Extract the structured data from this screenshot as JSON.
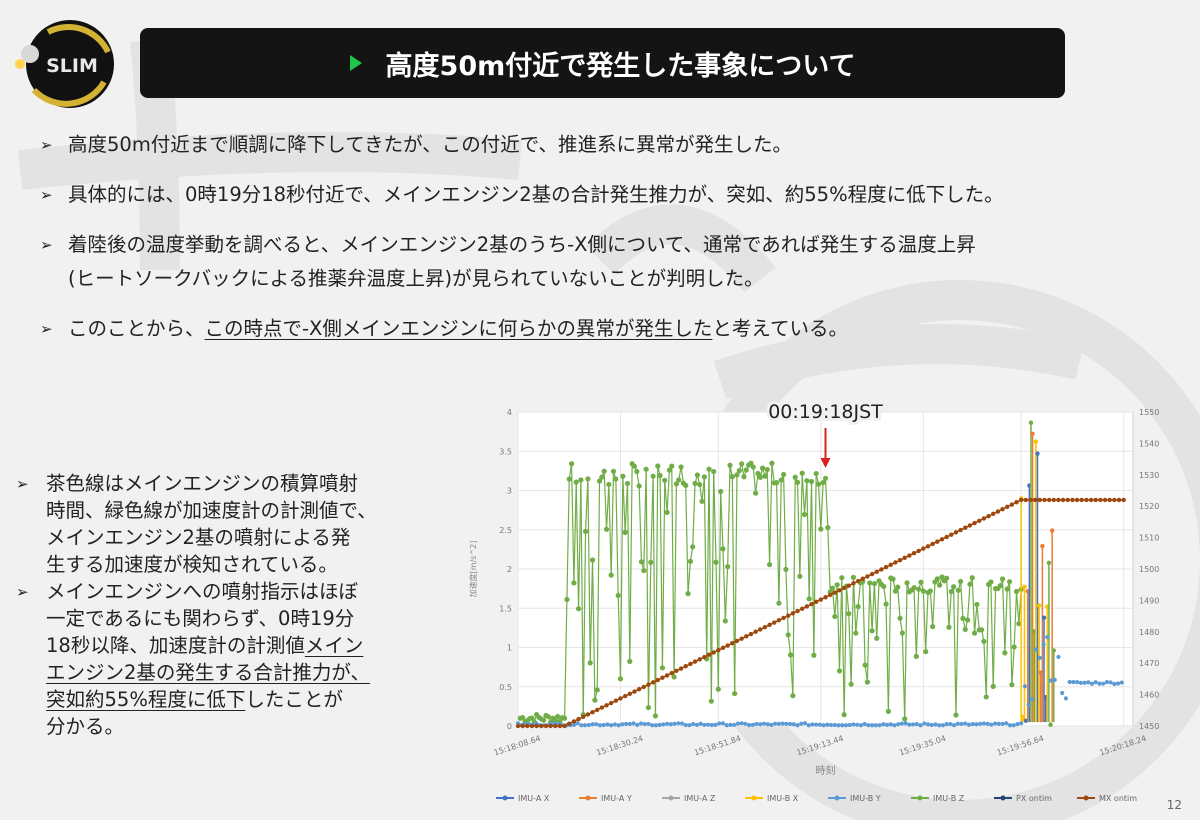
{
  "slide": {
    "title": "高度50m付近で発生した事象について",
    "page_number": "12"
  },
  "logo": {
    "text": "SLIM"
  },
  "bullets": [
    {
      "text": "高度50m付近まで順調に降下してきたが、この付近で、推進系に異常が発生した。"
    },
    {
      "text": "具体的には、0時19分18秒付近で、メインエンジン2基の合計発生推力が、突如、約55%程度に低下した。"
    },
    {
      "line1": "着陸後の温度挙動を調べると、メインエンジン2基のうち-X側について、通常であれば発生する温度上昇",
      "line2": "(ヒートソークバックによる推薬弁温度上昇)が見られていないことが判明した。"
    },
    {
      "pre": "このことから、",
      "underlined": "この時点で-X側メインエンジンに何らかの異常が発生した",
      "post": "と考えている。"
    }
  ],
  "left_notes": [
    {
      "lines": [
        "茶色線はメインエンジンの積算噴射",
        "時間、緑色線が加速度計の計測値で、",
        "メインエンジン2基の噴射による発",
        "生する加速度が検知されている。"
      ]
    },
    {
      "lines": [
        "メインエンジンへの噴射指示はほぼ",
        "一定であるにも関わらず、0時19分"
      ],
      "line3_pre": "18秒以降、加速度計の計測値",
      "line3_u": "メイン",
      "line4_u": "エンジン2基の発生する合計推力が、",
      "line5_u1": "突如約55%程度に低下",
      "line5_post": "したことが",
      "line6": "分かる。"
    }
  ],
  "chart_data": {
    "type": "line",
    "annotation": "00:19:18JST",
    "annotation_x": 66,
    "xlabel": "時刻",
    "ylabel": "加速度[m/s^2]",
    "xlim": [
      0,
      132
    ],
    "ylim": [
      0,
      4
    ],
    "y2lim": [
      1450,
      1550
    ],
    "x_ticks": [
      {
        "x": 0,
        "label": "15:18:08.64"
      },
      {
        "x": 22,
        "label": "15:18:30.24"
      },
      {
        "x": 43,
        "label": "15:18:51.84"
      },
      {
        "x": 65,
        "label": "15:19:13.44"
      },
      {
        "x": 87,
        "label": "15:19:35.04"
      },
      {
        "x": 108,
        "label": "15:19:56.64"
      },
      {
        "x": 130,
        "label": "15:20:18.24"
      }
    ],
    "y_ticks": [
      "0",
      "0.5",
      "1",
      "1.5",
      "2",
      "2.5",
      "3",
      "3.5",
      "4"
    ],
    "y2_ticks": [
      "1450",
      "1460",
      "1470",
      "1480",
      "1490",
      "1500",
      "1510",
      "1520",
      "1530",
      "1540",
      "1550"
    ],
    "legend": [
      {
        "name": "IMU-A X",
        "color": "#4472c4"
      },
      {
        "name": "IMU-A Y",
        "color": "#ed7d31"
      },
      {
        "name": "IMU-A Z",
        "color": "#a5a5a5"
      },
      {
        "name": "IMU-B X",
        "color": "#ffc000"
      },
      {
        "name": "IMU-B Y",
        "color": "#5b9bd5"
      },
      {
        "name": "IMU-B Z",
        "color": "#70ad47"
      },
      {
        "name": "PX ontim",
        "color": "#264478"
      },
      {
        "name": "MX ontim",
        "color": "#9e480e"
      }
    ],
    "series": [
      {
        "name": "MX ontim",
        "axis": "y2",
        "x": [
          0,
          10,
          66,
          108,
          114,
          130
        ],
        "y": [
          1450,
          1450,
          1491,
          1522,
          1522,
          1522
        ]
      },
      {
        "name": "IMU-B Z",
        "axis": "y",
        "x": [
          0,
          10,
          11,
          66,
          67,
          108
        ],
        "y": [
          0.1,
          0.1,
          3.2,
          3.2,
          1.8,
          1.8
        ]
      },
      {
        "name": "IMU-B Y",
        "axis": "y",
        "x": [
          0,
          108,
          112,
          118,
          130
        ],
        "y": [
          0.02,
          0.02,
          1.0,
          0.55,
          0.55
        ]
      }
    ]
  },
  "colors": {
    "title_bg": "#141414",
    "title_marker": "#22c34a",
    "brown_line": "#9e480e",
    "green_line": "#70ad47",
    "blue_line": "#5b9bd5",
    "arrow": "#d92020"
  }
}
